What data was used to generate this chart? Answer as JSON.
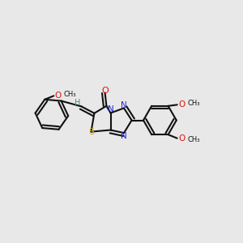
{
  "background_color": "#e8e8e8",
  "bond_color": "#111111",
  "S_color": "#ccaa00",
  "N_color": "#2222dd",
  "O_color": "#dd1111",
  "H_color": "#448888",
  "bond_lw": 1.5,
  "font_size": 7.5,
  "ome_font_size": 6.5
}
